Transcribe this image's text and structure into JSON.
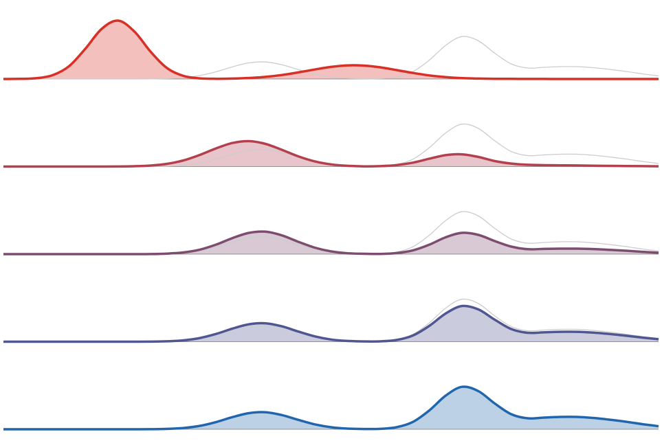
{
  "chart_data": {
    "type": "ridgeline",
    "x": [
      0,
      2.5,
      5,
      7.5,
      10,
      12.5,
      15,
      17.5,
      20,
      22.5,
      25,
      27.5,
      30,
      32.5,
      35,
      37.5,
      40,
      42.5,
      45,
      47.5,
      50,
      52.5,
      55,
      57.5,
      60,
      62.5,
      65,
      67.5,
      70,
      72.5,
      75,
      77.5,
      80,
      82.5,
      85,
      87.5,
      90,
      92.5,
      95,
      97.5,
      100
    ],
    "xlim": [
      0,
      100
    ],
    "ylim": [
      0,
      100
    ],
    "reference_color": "#cccccc",
    "series": [
      {
        "color": "#d73027",
        "values": [
          0,
          0.2,
          1.1,
          5.5,
          18.5,
          44,
          73,
          85,
          69,
          39.3,
          15.7,
          4.4,
          0.9,
          0.3,
          0.6,
          1.5,
          3.1,
          5.8,
          9.6,
          13.8,
          17.6,
          19.8,
          19.5,
          17,
          13,
          8.8,
          5.2,
          2.7,
          1.2,
          0.6,
          0.3,
          0.2,
          0.1,
          0.1,
          0,
          0,
          0,
          0,
          0,
          0,
          0
        ]
      },
      {
        "color": "#b2404f",
        "values": [
          0,
          0,
          0,
          0,
          0,
          0,
          0,
          0.1,
          0.5,
          1.5,
          4,
          9,
          17,
          26.6,
          34.4,
          37,
          33,
          24.4,
          14.9,
          7.6,
          3.2,
          1.1,
          0.3,
          0.6,
          2.1,
          5.7,
          11.4,
          16.6,
          17.8,
          14,
          8,
          4.4,
          2.6,
          2,
          1.8,
          1.6,
          1.3,
          1,
          0.8,
          0.6,
          0.4
        ]
      },
      {
        "color": "#7d4d70",
        "values": [
          0,
          0,
          0,
          0,
          0,
          0,
          0,
          0,
          0,
          0.1,
          0.8,
          2.5,
          6.6,
          14,
          23.5,
          31,
          32.7,
          27.3,
          18,
          9.5,
          4,
          1.3,
          0.5,
          0.3,
          1.5,
          5.4,
          13.7,
          24.5,
          31,
          28,
          19,
          11,
          7.2,
          7.6,
          8,
          8,
          7.4,
          6.3,
          5,
          3.4,
          2
        ]
      },
      {
        "color": "#4f5690",
        "values": [
          0,
          0,
          0,
          0,
          0,
          0,
          0,
          0,
          0,
          0.1,
          0.6,
          2,
          5.4,
          11.4,
          19.2,
          25.4,
          26.8,
          22.4,
          14.8,
          7.8,
          3.2,
          1.1,
          0.4,
          0.5,
          2.5,
          9,
          23,
          41,
          52,
          47,
          32,
          18.5,
          13,
          13.6,
          14.4,
          14.4,
          13.2,
          11.2,
          8.8,
          6,
          3.6
        ]
      },
      {
        "color": "#2166ac",
        "values": [
          0,
          0,
          0,
          0,
          0,
          0,
          0,
          0,
          0,
          0.1,
          0.6,
          1.9,
          5,
          10.6,
          17.8,
          23.5,
          24.8,
          20.7,
          13.7,
          7.2,
          3,
          1,
          0.4,
          0.6,
          3,
          10.7,
          27.4,
          48.9,
          61.8,
          55.5,
          37.5,
          22,
          16,
          17,
          18,
          18,
          16.5,
          14,
          11,
          7.5,
          4.5
        ]
      }
    ]
  }
}
